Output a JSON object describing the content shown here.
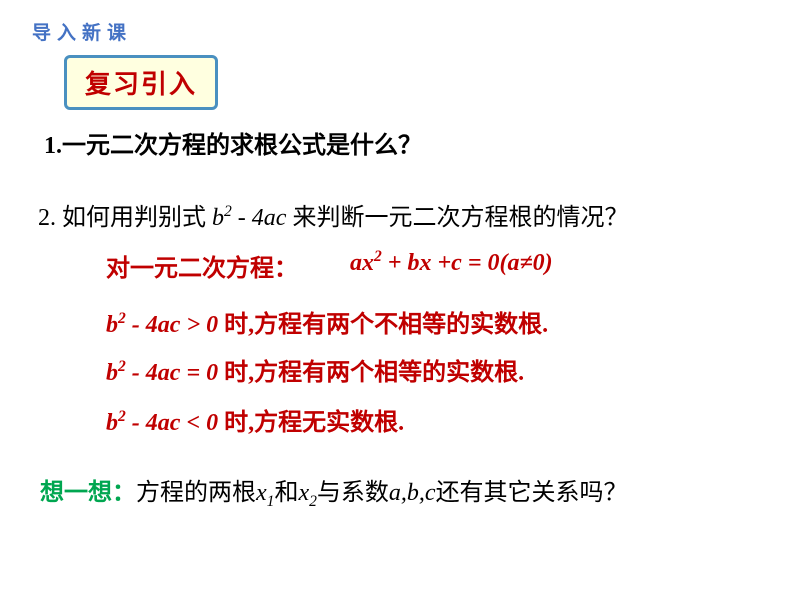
{
  "colors": {
    "section_label": "#4472c4",
    "badge_bg": "#ffffe0",
    "badge_border": "#4a90c0",
    "badge_text": "#c00000",
    "body_text": "#000000",
    "emphasis_red": "#c00000",
    "think_green": "#00a650",
    "page_bg": "#ffffff"
  },
  "typography": {
    "section_label_size": 19,
    "badge_size": 26,
    "body_size": 24
  },
  "section_label": "导入新课",
  "review_badge": "复习引入",
  "q1_prefix": "1.",
  "q1_text": "一元二次方程的求根公式是什么？",
  "q2_prefix": "2. 如何用判别式 ",
  "q2_disc": "b² - 4ac",
  "q2_suffix": " 来判断一元二次方程根的情况？",
  "eq_intro": "对一元二次方程：",
  "eq_formula": "ax² + bx +c = 0(a≠0)",
  "disc1_lhs": "b² - 4ac > 0",
  "disc1_rhs": " 时,方程有两个不相等的实数根.",
  "disc2_lhs": "b² - 4ac = 0",
  "disc2_rhs": " 时,方程有两个相等的实数根.",
  "disc3_lhs": "b² - 4ac < 0",
  "disc3_rhs": " 时,方程无实数根.",
  "think_label": "想一想：",
  "think_prefix": "方程的两根",
  "think_x1": "x₁",
  "think_and": "和",
  "think_x2": "x₂",
  "think_mid": "与系数",
  "think_abc": "a,b,c",
  "think_suffix": "还有其它关系吗？"
}
